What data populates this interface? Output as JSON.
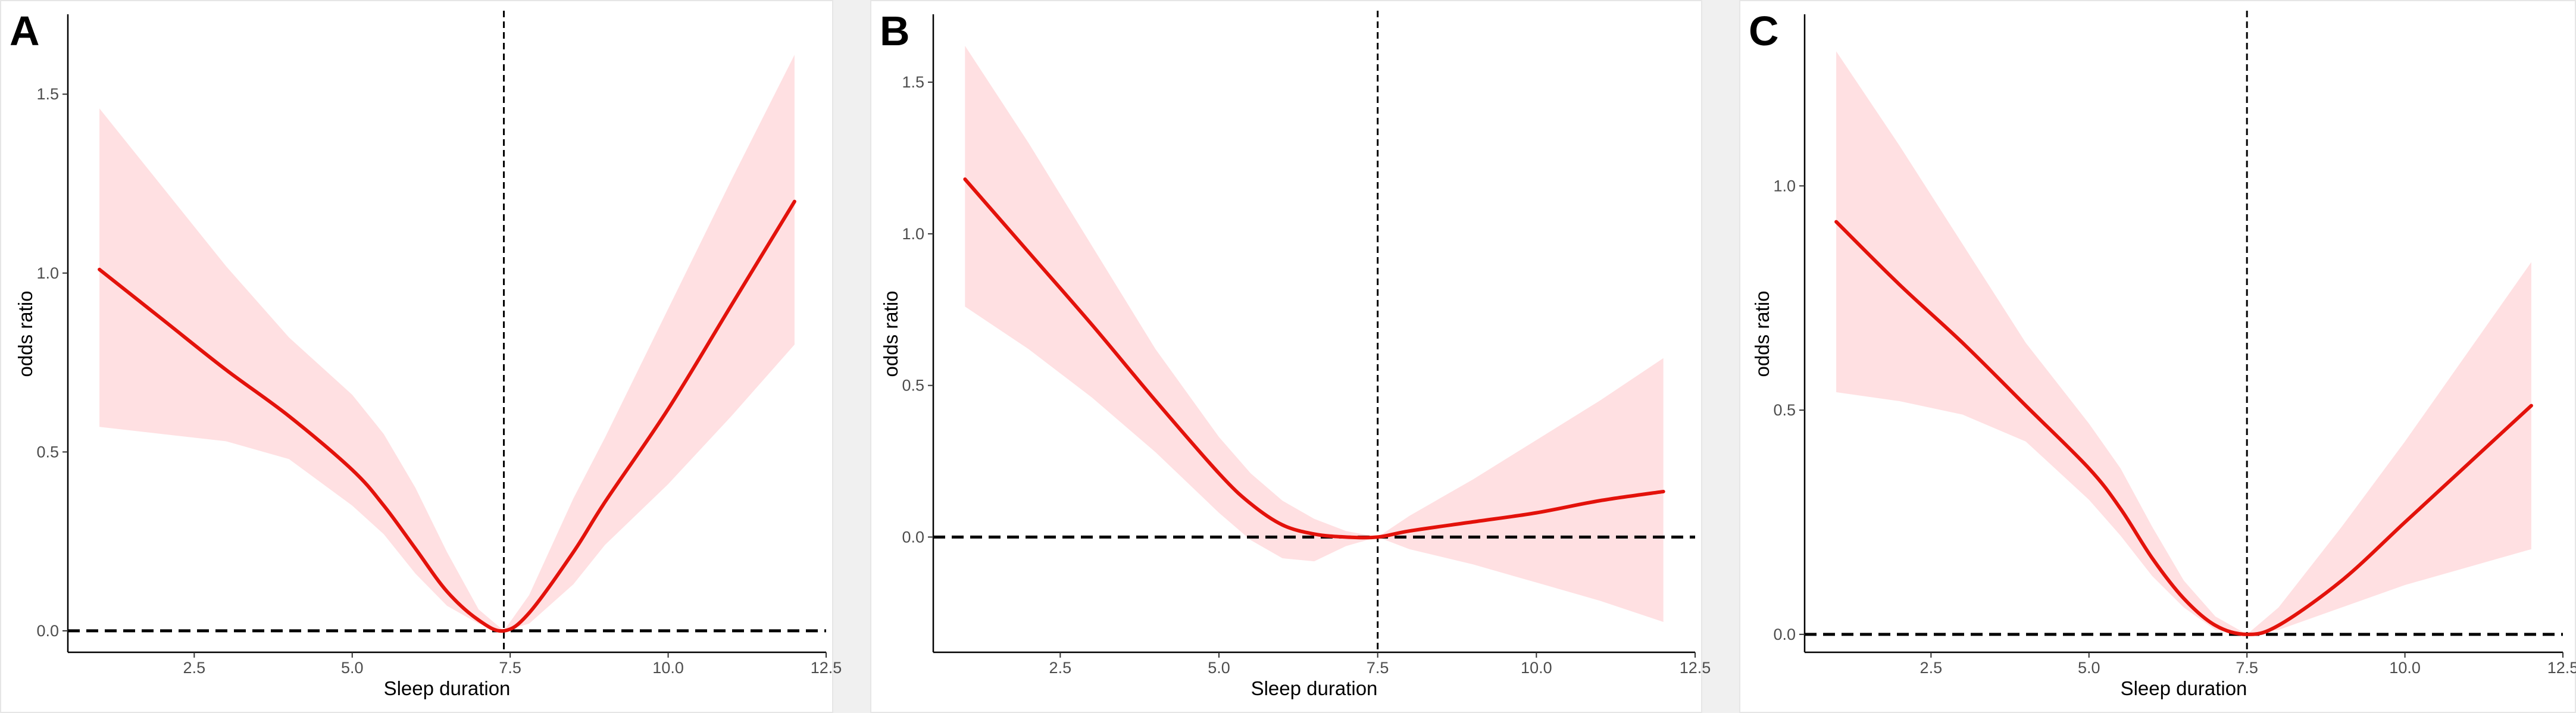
{
  "figure": {
    "colors": {
      "line": "#e3120b",
      "band": "#ffe0e2",
      "reference_line": "#000000",
      "axis": "#000000",
      "gap": "#f0f0f0"
    }
  },
  "chart_data": [
    {
      "type": "line",
      "panel_label": "A",
      "xlabel": "Sleep duration",
      "ylabel": "odds ratio",
      "xlim": [
        0.5,
        12.5
      ],
      "ylim": [
        -0.06,
        1.72
      ],
      "xticks": [
        2.5,
        5.0,
        7.5,
        10.0,
        12.5
      ],
      "xtick_labels": [
        "2.5",
        "5.0",
        "7.5",
        "10.0",
        "12.5"
      ],
      "yticks": [
        0.0,
        0.5,
        1.0,
        1.5
      ],
      "ytick_labels": [
        "0.0",
        "0.5",
        "1.0",
        "1.5"
      ],
      "reference_lines": {
        "x": 7.4,
        "y": 0.0
      },
      "series": [
        {
          "x": [
            1.0,
            2.0,
            3.0,
            4.0,
            5.0,
            5.5,
            6.0,
            6.5,
            7.0,
            7.4,
            7.8,
            8.5,
            9.0,
            10.0,
            11.0,
            12.0
          ],
          "y": [
            1.01,
            0.87,
            0.73,
            0.6,
            0.45,
            0.35,
            0.23,
            0.11,
            0.03,
            0.0,
            0.05,
            0.22,
            0.36,
            0.62,
            0.91,
            1.2
          ],
          "ci_lower": [
            0.57,
            0.55,
            0.53,
            0.48,
            0.35,
            0.27,
            0.16,
            0.07,
            0.02,
            0.0,
            0.02,
            0.13,
            0.24,
            0.41,
            0.6,
            0.8
          ],
          "ci_upper": [
            1.46,
            1.24,
            1.02,
            0.82,
            0.66,
            0.55,
            0.4,
            0.22,
            0.06,
            0.0,
            0.1,
            0.37,
            0.54,
            0.9,
            1.26,
            1.61
          ]
        }
      ]
    },
    {
      "type": "line",
      "panel_label": "B",
      "xlabel": "Sleep duration",
      "ylabel": "odds ratio",
      "xlim": [
        0.5,
        12.5
      ],
      "ylim": [
        -0.38,
        1.72
      ],
      "xticks": [
        2.5,
        5.0,
        7.5,
        10.0,
        12.5
      ],
      "xtick_labels": [
        "2.5",
        "5.0",
        "7.5",
        "10.0",
        "12.5"
      ],
      "yticks": [
        0.0,
        0.5,
        1.0,
        1.5
      ],
      "ytick_labels": [
        "0.0",
        "0.5",
        "1.0",
        "1.5"
      ],
      "reference_lines": {
        "x": 7.5,
        "y": 0.0
      },
      "series": [
        {
          "x": [
            1.0,
            2.0,
            3.0,
            4.0,
            5.0,
            5.5,
            6.0,
            6.5,
            7.0,
            7.5,
            8.0,
            9.0,
            10.0,
            11.0,
            12.0
          ],
          "y": [
            1.18,
            0.94,
            0.7,
            0.45,
            0.21,
            0.11,
            0.04,
            0.01,
            0.0,
            0.0,
            0.02,
            0.05,
            0.08,
            0.12,
            0.15
          ],
          "ci_lower": [
            0.76,
            0.62,
            0.46,
            0.28,
            0.08,
            -0.01,
            -0.07,
            -0.08,
            -0.03,
            0.0,
            -0.04,
            -0.09,
            -0.15,
            -0.21,
            -0.28
          ],
          "ci_upper": [
            1.62,
            1.3,
            0.96,
            0.62,
            0.33,
            0.21,
            0.12,
            0.06,
            0.02,
            0.0,
            0.07,
            0.19,
            0.32,
            0.45,
            0.59
          ]
        }
      ]
    },
    {
      "type": "line",
      "panel_label": "C",
      "xlabel": "Sleep duration",
      "ylabel": "odds ratio",
      "xlim": [
        0.5,
        12.5
      ],
      "ylim": [
        -0.04,
        1.38
      ],
      "xticks": [
        2.5,
        5.0,
        7.5,
        10.0,
        12.5
      ],
      "xtick_labels": [
        "2.5",
        "5.0",
        "7.5",
        "10.0",
        "12.5"
      ],
      "yticks": [
        0.0,
        0.5,
        1.0
      ],
      "ytick_labels": [
        "0.0",
        "0.5",
        "1.0"
      ],
      "reference_lines": {
        "x": 7.5,
        "y": 0.0
      },
      "series": [
        {
          "x": [
            1.0,
            2.0,
            3.0,
            4.0,
            5.0,
            5.5,
            6.0,
            6.5,
            7.0,
            7.5,
            8.0,
            9.0,
            10.0,
            11.0,
            12.0
          ],
          "y": [
            0.92,
            0.78,
            0.65,
            0.51,
            0.37,
            0.28,
            0.17,
            0.08,
            0.02,
            0.0,
            0.02,
            0.12,
            0.25,
            0.38,
            0.51
          ],
          "ci_lower": [
            0.54,
            0.52,
            0.49,
            0.43,
            0.3,
            0.22,
            0.13,
            0.06,
            0.01,
            0.0,
            0.01,
            0.06,
            0.11,
            0.15,
            0.19
          ],
          "ci_upper": [
            1.3,
            1.09,
            0.87,
            0.65,
            0.47,
            0.37,
            0.24,
            0.12,
            0.04,
            0.0,
            0.06,
            0.24,
            0.43,
            0.63,
            0.83
          ]
        }
      ]
    }
  ]
}
